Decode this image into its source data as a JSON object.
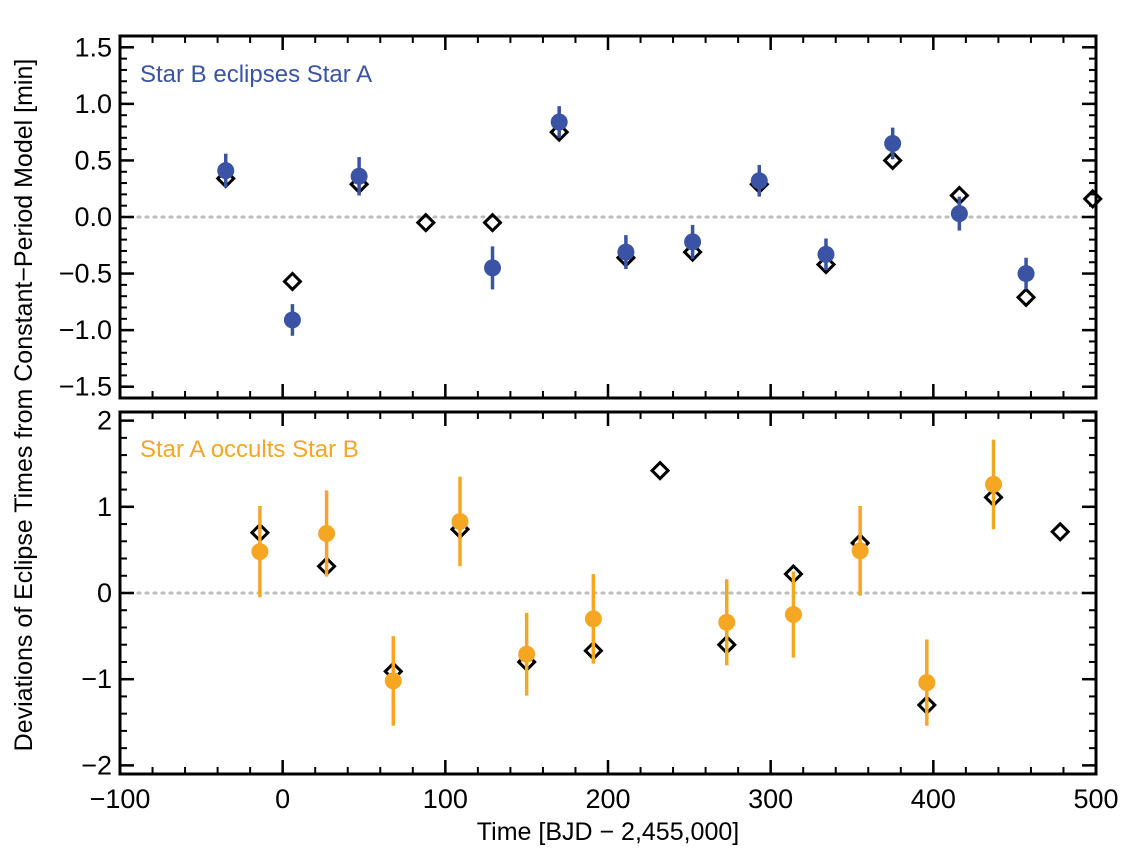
{
  "chart_data": [
    {
      "type": "scatter",
      "title": "Star B eclipses Star A",
      "ylim": [
        -1.6,
        1.6
      ],
      "yticks": [
        "1.5",
        "1.0",
        "0.5",
        "0.0",
        "−0.5",
        "−1.0",
        "−1.5"
      ],
      "ytick_values": [
        1.5,
        1.0,
        0.5,
        0.0,
        -0.5,
        -1.0,
        -1.5
      ],
      "title_color": "#3a53a4",
      "series": [
        {
          "marker": "filled circle with error bar",
          "color": "#3a53a4",
          "x": [
            -35,
            6,
            47,
            129,
            170,
            211,
            252,
            293,
            334,
            375,
            416,
            457
          ],
          "y": [
            0.41,
            -0.91,
            0.36,
            -0.45,
            0.84,
            -0.31,
            -0.22,
            0.32,
            -0.33,
            0.65,
            0.03,
            -0.5
          ],
          "yerr": [
            0.15,
            0.14,
            0.17,
            0.19,
            0.14,
            0.15,
            0.15,
            0.14,
            0.14,
            0.14,
            0.15,
            0.14
          ]
        },
        {
          "marker": "open diamond",
          "color": "#000000",
          "x": [
            -35,
            6,
            47,
            88,
            129,
            170,
            211,
            252,
            293,
            334,
            375,
            416,
            457,
            498
          ],
          "y": [
            0.34,
            -0.57,
            0.29,
            -0.05,
            -0.05,
            0.75,
            -0.36,
            -0.31,
            0.29,
            -0.42,
            0.5,
            0.19,
            -0.71,
            0.16
          ]
        }
      ]
    },
    {
      "type": "scatter",
      "title": "Star A occults Star B",
      "ylim": [
        -2.1,
        2.1
      ],
      "yticks": [
        "2",
        "1",
        "0",
        "−1",
        "−2"
      ],
      "ytick_values": [
        2,
        1,
        0,
        -1,
        -2
      ],
      "title_color": "#f5a623",
      "series": [
        {
          "marker": "filled circle with error bar",
          "color": "#f5a623",
          "x": [
            -14,
            27,
            68,
            109,
            150,
            191,
            273,
            314,
            355,
            396,
            437
          ],
          "y": [
            0.48,
            0.69,
            -1.02,
            0.83,
            -0.71,
            -0.3,
            -0.34,
            -0.25,
            0.49,
            -1.04,
            1.26
          ],
          "yerr": [
            0.53,
            0.5,
            0.52,
            0.52,
            0.48,
            0.52,
            0.5,
            0.5,
            0.52,
            0.5,
            0.52
          ]
        },
        {
          "marker": "open diamond",
          "color": "#000000",
          "x": [
            -14,
            27,
            68,
            109,
            150,
            191,
            232,
            273,
            314,
            355,
            396,
            437,
            478
          ],
          "y": [
            0.7,
            0.31,
            -0.91,
            0.74,
            -0.8,
            -0.67,
            1.42,
            -0.6,
            0.22,
            0.58,
            -1.3,
            1.11,
            0.71
          ]
        }
      ]
    }
  ],
  "shared": {
    "xlabel": "Time [BJD − 2,455,000]",
    "ylabel": "Deviations of Eclipse Times from Constant−Period Model [min]",
    "xlim": [
      -100,
      500
    ],
    "xticks": [
      "−100",
      "0",
      "100",
      "200",
      "300",
      "400",
      "500"
    ],
    "xtick_values": [
      -100,
      0,
      100,
      200,
      300,
      400,
      500
    ],
    "zero_line": "dotted gray"
  }
}
